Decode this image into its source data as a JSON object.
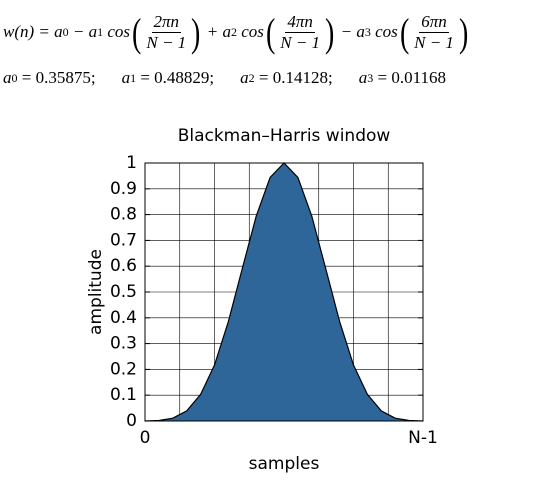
{
  "formula": [
    {
      "text": "w(n) = a"
    },
    {
      "sub": "0"
    },
    {
      "text": " − a"
    },
    {
      "sub": "1"
    },
    {
      "text": " cos"
    },
    {
      "open": "("
    },
    {
      "num": "2πn",
      "den": "N − 1"
    },
    {
      "close": ")"
    },
    {
      "text": " + a"
    },
    {
      "sub": "2"
    },
    {
      "text": " cos"
    },
    {
      "open": "("
    },
    {
      "num": "4πn",
      "den": "N − 1"
    },
    {
      "close": ")"
    },
    {
      "text": " − a"
    },
    {
      "sub": "3"
    },
    {
      "text": " cos"
    },
    {
      "open": "("
    },
    {
      "num": "6πn",
      "den": "N − 1"
    },
    {
      "close": ")"
    }
  ],
  "coefficients": [
    {
      "name": "a",
      "sub": "0",
      "eq": " = ",
      "value": 0.35875,
      "sep": ";"
    },
    {
      "name": "a",
      "sub": "1",
      "eq": " = ",
      "value": 0.48829,
      "sep": ";"
    },
    {
      "name": "a",
      "sub": "2",
      "eq": " = ",
      "value": 0.14128,
      "sep": ";"
    },
    {
      "name": "a",
      "sub": "3",
      "eq": " = ",
      "value": 0.01168
    }
  ],
  "chart_data": {
    "type": "area",
    "title": "Blackman–Harris window",
    "xlabel": "samples",
    "ylabel": "amplitude",
    "x": [
      0,
      1,
      2,
      3,
      4,
      5,
      6,
      7,
      8,
      9,
      10,
      11,
      12,
      13,
      14,
      15,
      16,
      17,
      18,
      19,
      20
    ],
    "values": [
      0,
      0.002,
      0.011,
      0.039,
      0.103,
      0.217,
      0.386,
      0.591,
      0.794,
      0.944,
      1,
      0.944,
      0.794,
      0.591,
      0.386,
      0.217,
      0.103,
      0.039,
      0.011,
      0.002,
      0
    ],
    "color": "#2e6699",
    "xlim": [
      0,
      20
    ],
    "xticks": [
      0,
      {
        "value": 20,
        "label": "N-1"
      }
    ],
    "ylim": [
      0,
      1
    ],
    "yticks": [
      0,
      0.1,
      0.2,
      0.3,
      0.4,
      0.5,
      0.6,
      0.7,
      0.8,
      0.9,
      1
    ],
    "grid": true
  }
}
